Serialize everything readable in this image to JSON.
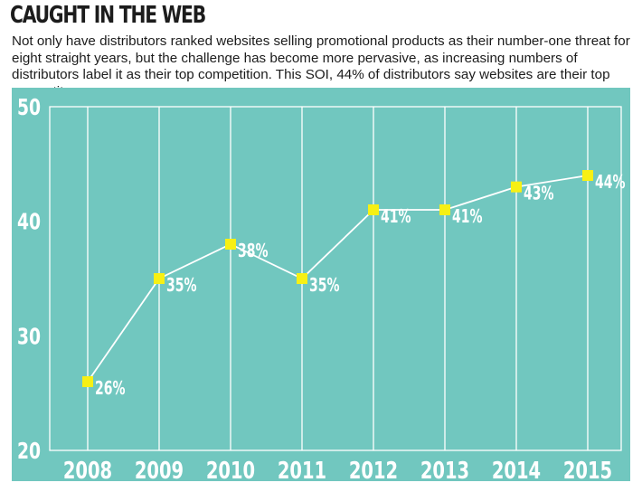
{
  "header": {
    "title": "CAUGHT IN THE WEB",
    "subtitle": "Not only have distributors ranked websites selling promotional products as their number-one threat for eight straight years, but the challenge has become more pervasive, as increasing numbers of distributors label it as their top competition. This SOI, 44% of distributors say websites are their top competitor."
  },
  "colors": {
    "background": "#71c7bf",
    "grid": "#ffffff",
    "line": "#ffffff",
    "marker": "#f7f014",
    "text": "#1c1c1c"
  },
  "chart_data": {
    "type": "line",
    "title": "CAUGHT IN THE WEB",
    "categories": [
      "2008",
      "2009",
      "2010",
      "2011",
      "2012",
      "2013",
      "2014",
      "2015"
    ],
    "values": [
      26,
      35,
      38,
      35,
      41,
      41,
      43,
      44
    ],
    "data_labels": [
      "26%",
      "35%",
      "38%",
      "35%",
      "41%",
      "41%",
      "43%",
      "44%"
    ],
    "yticks": [
      "20",
      "30",
      "40",
      "50"
    ],
    "ylim": [
      20,
      50
    ],
    "xlabel": "",
    "ylabel": "",
    "grid": "vertical",
    "legend": "none"
  }
}
